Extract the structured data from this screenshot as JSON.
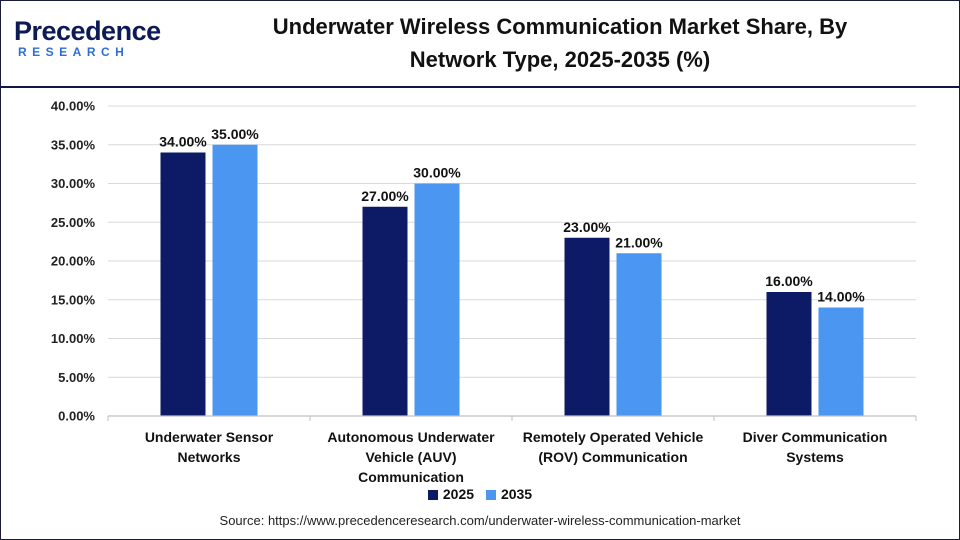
{
  "brand": {
    "name_top": "Precedence",
    "name_sub": "RESEARCH"
  },
  "title_line1": "Underwater Wireless Communication Market Share, By",
  "title_line2": "Network Type, 2025-2035 (%)",
  "colors": {
    "series_2025": "#0d1a66",
    "series_2035": "#4a96f0",
    "grid": "#d9d9d9",
    "rule": "#0c1a3d"
  },
  "chart_data": {
    "type": "bar",
    "title": "Underwater Wireless Communication Market Share, By Network Type, 2025-2035 (%)",
    "categories": [
      [
        "Underwater Sensor",
        "Networks"
      ],
      [
        "Autonomous Underwater",
        "Vehicle (AUV)",
        "Communication"
      ],
      [
        "Remotely Operated Vehicle",
        "(ROV) Communication"
      ],
      [
        "Diver Communication",
        "Systems"
      ]
    ],
    "series": [
      {
        "name": "2025",
        "values": [
          34.0,
          27.0,
          23.0,
          16.0
        ],
        "labels": [
          "34.00%",
          "27.00%",
          "23.00%",
          "16.00%"
        ]
      },
      {
        "name": "2035",
        "values": [
          35.0,
          30.0,
          21.0,
          14.0
        ],
        "labels": [
          "35.00%",
          "30.00%",
          "21.00%",
          "14.00%"
        ]
      }
    ],
    "ylim": [
      0,
      40
    ],
    "yticks": [
      "0.00%",
      "5.00%",
      "10.00%",
      "15.00%",
      "20.00%",
      "25.00%",
      "30.00%",
      "35.00%",
      "40.00%"
    ],
    "grid": true,
    "legend": "bottom-center"
  },
  "source": "Source: https://www.precedenceresearch.com/underwater-wireless-communication-market"
}
